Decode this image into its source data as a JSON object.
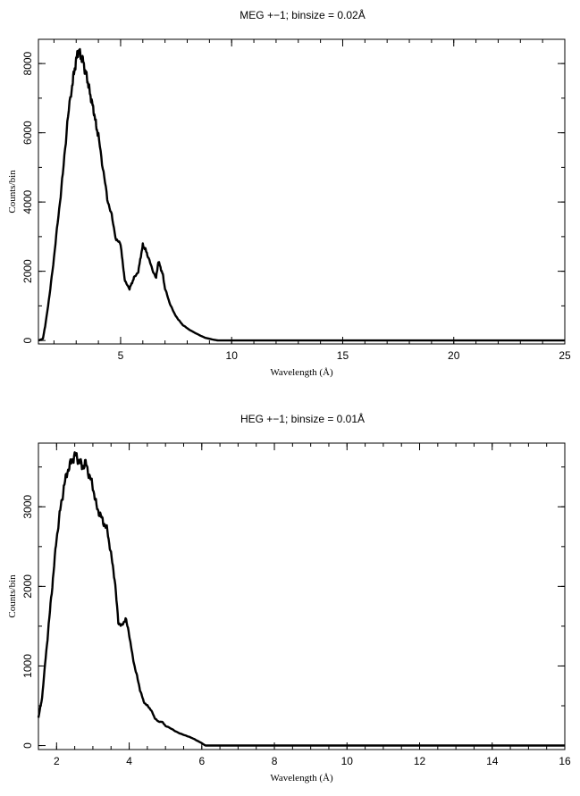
{
  "chart_data": [
    {
      "type": "line",
      "title": "MEG +−1; binsize = 0.02Å",
      "xlabel": "Wavelength (Å)",
      "ylabel": "Counts/bin",
      "xlim": [
        1.3,
        25
      ],
      "ylim": [
        -100,
        8700
      ],
      "xticks": [
        5,
        10,
        15,
        20,
        25
      ],
      "xtick_labels": [
        "5",
        "10",
        "15",
        "20",
        "25"
      ],
      "yticks": [
        0,
        2000,
        4000,
        6000,
        8000
      ],
      "ytick_labels": [
        "0",
        "2000",
        "4000",
        "6000",
        "8000"
      ],
      "grid": false,
      "series": [
        {
          "x": [
            1.3,
            1.5,
            1.6,
            1.8,
            2.0,
            2.2,
            2.4,
            2.6,
            2.8,
            2.9,
            3.0,
            3.1,
            3.2,
            3.3,
            3.4,
            3.5,
            3.6,
            3.7,
            3.8,
            3.9,
            4.0,
            4.2,
            4.4,
            4.6,
            4.8,
            5.0,
            5.1,
            5.2,
            5.4,
            5.5,
            5.6,
            5.8,
            5.9,
            6.0,
            6.1,
            6.2,
            6.4,
            6.6,
            6.7,
            6.8,
            6.9,
            7.0,
            7.2,
            7.4,
            7.6,
            7.8,
            8.0,
            8.4,
            8.8,
            9.2,
            9.4,
            10,
            12,
            15,
            20,
            25
          ],
          "y": [
            0,
            50,
            400,
            1300,
            2400,
            3600,
            4800,
            6300,
            7300,
            7700,
            8100,
            8400,
            8200,
            8100,
            7800,
            7550,
            7200,
            6900,
            6600,
            6200,
            5900,
            5000,
            4100,
            3600,
            2900,
            2800,
            2200,
            1700,
            1500,
            1650,
            1800,
            2000,
            2400,
            2750,
            2650,
            2500,
            2100,
            1800,
            2300,
            2100,
            1900,
            1500,
            1100,
            800,
            600,
            450,
            350,
            200,
            80,
            20,
            0,
            0,
            0,
            0,
            0,
            0
          ]
        }
      ]
    },
    {
      "type": "line",
      "title": "HEG +−1; binsize = 0.01Å",
      "xlabel": "Wavelength (Å)",
      "ylabel": "Counts/bin",
      "xlim": [
        1.5,
        16
      ],
      "ylim": [
        -50,
        3800
      ],
      "xticks": [
        2,
        4,
        6,
        8,
        10,
        12,
        14,
        16
      ],
      "xtick_labels": [
        "2",
        "4",
        "6",
        "8",
        "10",
        "12",
        "14",
        "16"
      ],
      "yticks": [
        0,
        1000,
        2000,
        3000
      ],
      "ytick_labels": [
        "0",
        "1000",
        "2000",
        "3000"
      ],
      "grid": false,
      "series": [
        {
          "x": [
            1.5,
            1.6,
            1.7,
            1.8,
            1.9,
            2.0,
            2.1,
            2.2,
            2.3,
            2.4,
            2.5,
            2.6,
            2.7,
            2.8,
            2.9,
            3.0,
            3.1,
            3.2,
            3.3,
            3.4,
            3.5,
            3.6,
            3.7,
            3.8,
            3.9,
            4.0,
            4.1,
            4.2,
            4.3,
            4.4,
            4.5,
            4.6,
            4.7,
            4.8,
            4.9,
            5.0,
            5.2,
            5.4,
            5.6,
            5.8,
            6.0,
            6.1,
            6.2,
            8,
            10,
            12,
            14,
            16
          ],
          "y": [
            350,
            600,
            1100,
            1600,
            2100,
            2600,
            2950,
            3250,
            3450,
            3550,
            3650,
            3600,
            3500,
            3550,
            3400,
            3250,
            3000,
            2900,
            2800,
            2700,
            2400,
            2100,
            1550,
            1500,
            1600,
            1400,
            1100,
            900,
            700,
            550,
            500,
            450,
            350,
            300,
            300,
            250,
            200,
            150,
            120,
            80,
            30,
            0,
            0,
            0,
            0,
            0,
            0,
            0
          ]
        }
      ]
    }
  ]
}
